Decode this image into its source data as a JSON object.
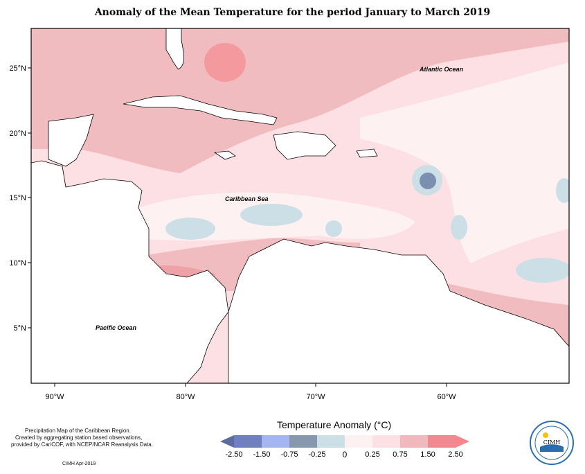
{
  "title": "Anomaly of the Mean Temperature for the period January to March 2019",
  "map": {
    "lat_labels": [
      "25°N",
      "20°N",
      "15°N",
      "10°N",
      "5°N"
    ],
    "lon_labels": [
      "90°W",
      "80°W",
      "70°W",
      "60°W"
    ],
    "regions": {
      "atlantic": "Atlantic Ocean",
      "caribbean": "Caribbean Sea",
      "pacific": "Pacific Ocean"
    },
    "colors": {
      "ocean_base": "#fde0e3",
      "warm_light": "#f5c5c9",
      "warm_mid": "#eeb3b6",
      "warm_strong": "#f39aa0",
      "warm_max": "#f2797f",
      "cool_light": "#ccdfe6",
      "cool_mid": "#7b8fb0",
      "near_zero": "#fdf1f2",
      "land": "#ffffff"
    }
  },
  "notes": {
    "line1": "Precipitation Map of the Caribbean Region.",
    "line2": "Created by aggregating station based observations,",
    "line3": "provided by CariCOF, with NCEP/NCAR Reanalysis Data.",
    "credit": "CIMH Apr-2019"
  },
  "legend": {
    "title": "Temperature Anomaly (°C)",
    "ticks": [
      "-2.50",
      "-1.50",
      "-0.75",
      "-0.25",
      "0",
      "0.25",
      "0.75",
      "1.50",
      "2.50"
    ],
    "colors": [
      "#5d6c9e",
      "#8b99d6",
      "#a4b4f4",
      "#8797ac",
      "#ccdfe6",
      "#fdf1f2",
      "#fde0e3",
      "#f1b9bd",
      "#f08a90",
      "#f7858b"
    ]
  },
  "logo": {
    "text": "CIMH"
  }
}
